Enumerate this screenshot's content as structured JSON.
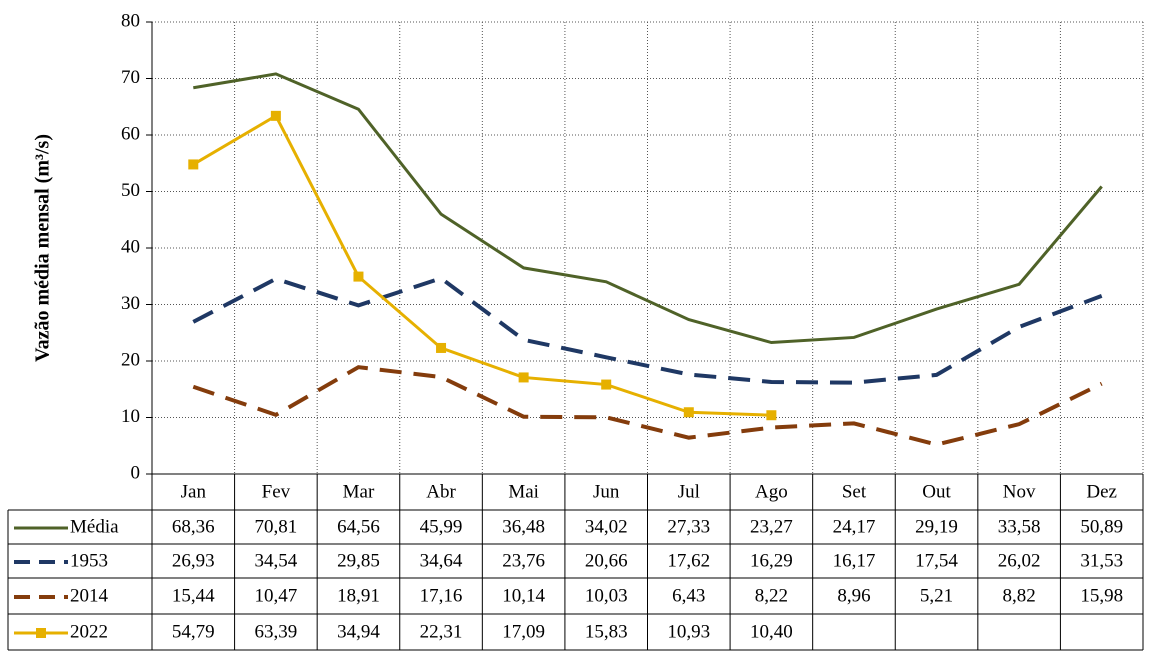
{
  "chart_data": {
    "type": "line",
    "y_label": "Vazão média mensal (m³/s)",
    "categories": [
      "Jan",
      "Fev",
      "Mar",
      "Abr",
      "Mai",
      "Jun",
      "Jul",
      "Ago",
      "Set",
      "Out",
      "Nov",
      "Dez"
    ],
    "ylim": [
      0,
      80
    ],
    "yticks": [
      0,
      10,
      20,
      30,
      40,
      50,
      60,
      70,
      80
    ],
    "grid": true,
    "series": [
      {
        "name": "Média",
        "color": "#4f6228",
        "dashed": false,
        "values": [
          68.36,
          70.81,
          64.56,
          45.99,
          36.48,
          34.02,
          27.33,
          23.27,
          24.17,
          29.19,
          33.58,
          50.89
        ],
        "value_labels": [
          "68,36",
          "70,81",
          "64,56",
          "45,99",
          "36,48",
          "34,02",
          "27,33",
          "23,27",
          "24,17",
          "29,19",
          "33,58",
          "50,89"
        ]
      },
      {
        "name": "1953",
        "color": "#1f3864",
        "dashed": true,
        "values": [
          26.93,
          34.54,
          29.85,
          34.64,
          23.76,
          20.66,
          17.62,
          16.29,
          16.17,
          17.54,
          26.02,
          31.53
        ],
        "value_labels": [
          "26,93",
          "34,54",
          "29,85",
          "34,64",
          "23,76",
          "20,66",
          "17,62",
          "16,29",
          "16,17",
          "17,54",
          "26,02",
          "31,53"
        ]
      },
      {
        "name": "2014",
        "color": "#843c0c",
        "dashed": true,
        "values": [
          15.44,
          10.47,
          18.91,
          17.16,
          10.14,
          10.03,
          6.43,
          8.22,
          8.96,
          5.21,
          8.82,
          15.98
        ],
        "value_labels": [
          "15,44",
          "10,47",
          "18,91",
          "17,16",
          "10,14",
          "10,03",
          "6,43",
          "8,22",
          "8,96",
          "5,21",
          "8,82",
          "15,98"
        ]
      },
      {
        "name": "2022",
        "color": "#e6b000",
        "dashed": false,
        "marker": "square",
        "values": [
          54.79,
          63.39,
          34.94,
          22.31,
          17.09,
          15.83,
          10.93,
          10.4,
          null,
          null,
          null,
          null
        ],
        "value_labels": [
          "54,79",
          "63,39",
          "34,94",
          "22,31",
          "17,09",
          "15,83",
          "10,93",
          "10,40",
          null,
          null,
          null,
          null
        ]
      }
    ]
  }
}
